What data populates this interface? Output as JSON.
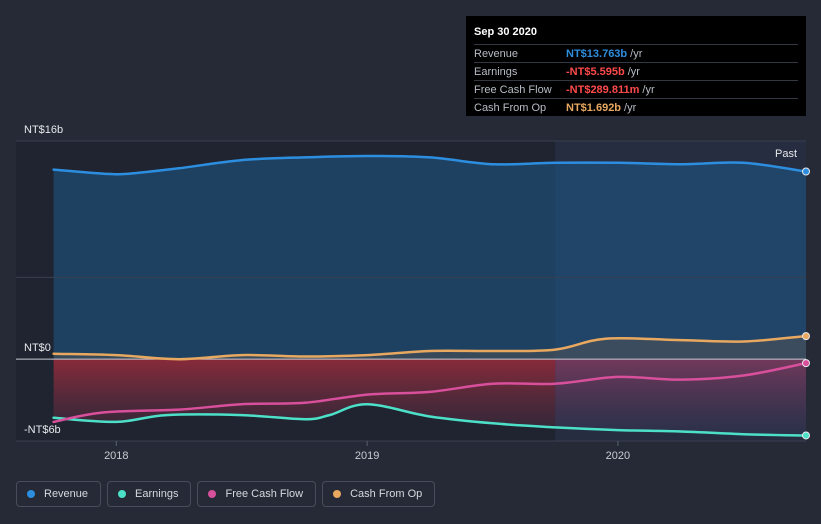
{
  "chart_data": {
    "type": "area",
    "x_ticks": [
      {
        "value": 2018,
        "label": "2018"
      },
      {
        "value": 2019,
        "label": "2019"
      },
      {
        "value": 2020,
        "label": "2020"
      }
    ],
    "y_axis_labels": [
      "NT$16b",
      "NT$0",
      "-NT$6b"
    ],
    "xlim": [
      2017.6,
      2020.75
    ],
    "ylim": [
      -6,
      16
    ],
    "past_label": "Past",
    "past_start": 2019.75,
    "series": [
      {
        "name": "Revenue",
        "color": "#2d8ee0",
        "x": [
          2017.75,
          2017.95,
          2018.05,
          2018.25,
          2018.5,
          2018.75,
          2019.0,
          2019.25,
          2019.5,
          2019.75,
          2020.0,
          2020.25,
          2020.5,
          2020.75
        ],
        "values": [
          13.9,
          13.6,
          13.6,
          14.0,
          14.6,
          14.8,
          14.9,
          14.8,
          14.3,
          14.4,
          14.4,
          14.3,
          14.4,
          13.763
        ]
      },
      {
        "name": "Earnings",
        "color": "#4de0c8",
        "x": [
          2017.75,
          2018.0,
          2018.2,
          2018.5,
          2018.75,
          2018.85,
          2019.0,
          2019.25,
          2019.5,
          2019.75,
          2020.0,
          2020.25,
          2020.5,
          2020.75
        ],
        "values": [
          -4.3,
          -4.6,
          -4.1,
          -4.1,
          -4.4,
          -4.1,
          -3.3,
          -4.2,
          -4.7,
          -5.0,
          -5.2,
          -5.3,
          -5.5,
          -5.595
        ]
      },
      {
        "name": "Free Cash Flow",
        "color": "#d84f9c",
        "x": [
          2017.75,
          2017.95,
          2018.25,
          2018.5,
          2018.75,
          2019.0,
          2019.25,
          2019.5,
          2019.75,
          2020.0,
          2020.25,
          2020.5,
          2020.75
        ],
        "values": [
          -4.6,
          -3.9,
          -3.7,
          -3.3,
          -3.2,
          -2.6,
          -2.4,
          -1.8,
          -1.8,
          -1.3,
          -1.5,
          -1.2,
          -0.29
        ]
      },
      {
        "name": "Cash From Op",
        "color": "#e8a860",
        "x": [
          2017.75,
          2018.0,
          2018.25,
          2018.5,
          2018.75,
          2019.0,
          2019.25,
          2019.5,
          2019.75,
          2019.95,
          2020.25,
          2020.5,
          2020.75
        ],
        "values": [
          0.4,
          0.3,
          0.0,
          0.3,
          0.2,
          0.3,
          0.6,
          0.6,
          0.7,
          1.5,
          1.4,
          1.3,
          1.692
        ]
      }
    ]
  },
  "tooltip": {
    "date": "Sep 30 2020",
    "rows": [
      {
        "label": "Revenue",
        "value": "NT$13.763b",
        "unit": "/yr",
        "color": "#2d8ee0"
      },
      {
        "label": "Earnings",
        "value": "-NT$5.595b",
        "unit": "/yr",
        "color": "#ff4a4a"
      },
      {
        "label": "Free Cash Flow",
        "value": "-NT$289.811m",
        "unit": "/yr",
        "color": "#ff4a4a"
      },
      {
        "label": "Cash From Op",
        "value": "NT$1.692b",
        "unit": "/yr",
        "color": "#e8a860"
      }
    ]
  },
  "legend": [
    {
      "label": "Revenue",
      "color": "#2d8ee0"
    },
    {
      "label": "Earnings",
      "color": "#4de0c8"
    },
    {
      "label": "Free Cash Flow",
      "color": "#d84f9c"
    },
    {
      "label": "Cash From Op",
      "color": "#e8a860"
    }
  ]
}
